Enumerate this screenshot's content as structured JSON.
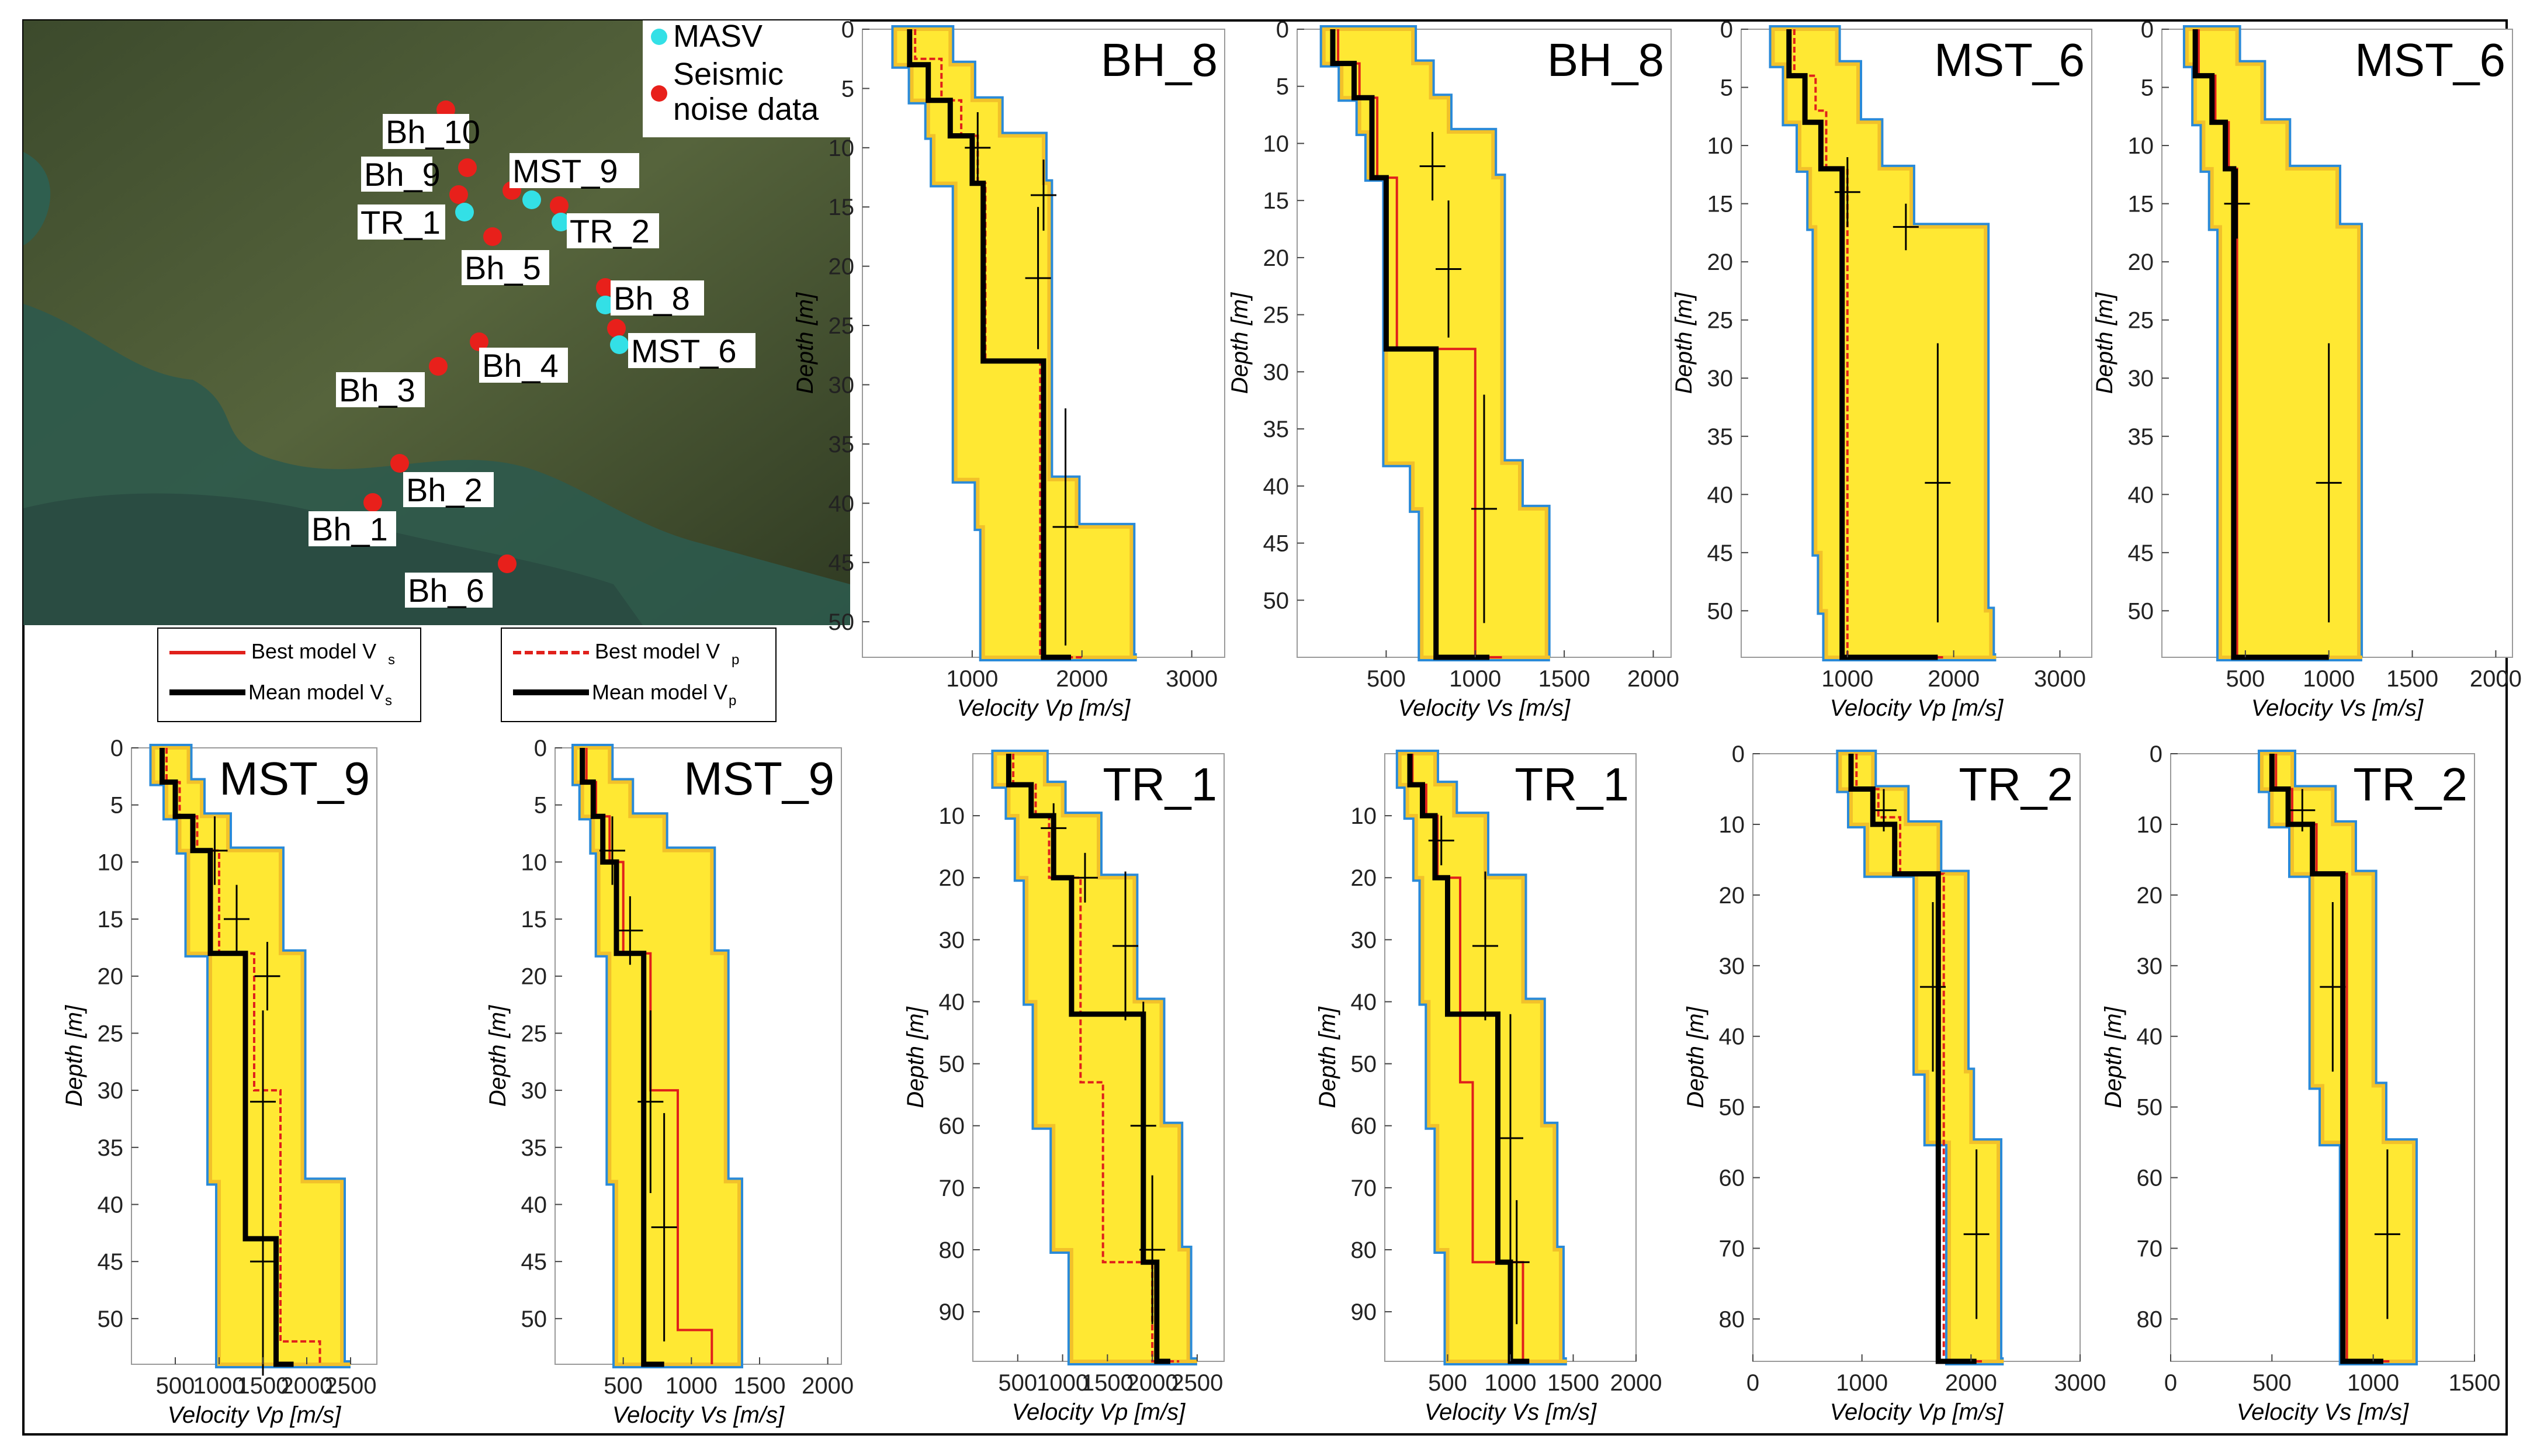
{
  "colors": {
    "best_vs": "#e0201b",
    "best_vp": "#e0201b",
    "mean": "#000000",
    "masv": "#33e0e6",
    "seismic": "#e8201b",
    "fill_yellow": "#ffe833",
    "fill_orange": "#f2c12a"
  },
  "map": {
    "legend": {
      "masv": "MASV",
      "seismic_line1": "Seismic",
      "seismic_line2": "noise data"
    },
    "labels": [
      "Bh_10",
      "Bh_9",
      "MST_9",
      "TR_1",
      "TR_2",
      "Bh_5",
      "Bh_8",
      "MST_6",
      "Bh_4",
      "Bh_3",
      "Bh_2",
      "Bh_1",
      "Bh_6"
    ],
    "model_legend_vs": {
      "best": "Best model V",
      "mean": "Mean model V",
      "sub": "s"
    },
    "model_legend_vp": {
      "best": "Best model V",
      "mean": "Mean model V",
      "sub": "p"
    }
  },
  "common": {
    "ylabel": "Depth [m]",
    "xlabel_vp": "Velocity V_p [m/s]",
    "xlabel_vs": "Velocity V_s [m/s]"
  },
  "chart_data": [
    {
      "type": "line",
      "title": "BH_8",
      "quantity": "Vp",
      "ylabel": "Depth [m]",
      "xlabel": "Velocity Vp [m/s]",
      "xlim": [
        0,
        3300
      ],
      "ylim": [
        0,
        53
      ],
      "xticks": [
        1000,
        2000,
        3000
      ],
      "xtick_labels": [
        "1000",
        "2000",
        "3000"
      ],
      "yticks": [
        0,
        5,
        10,
        15,
        20,
        25,
        30,
        35,
        40,
        45,
        50
      ],
      "mean_profile": {
        "v": [
          430,
          600,
          800,
          1000,
          1100,
          1650,
          1900
        ],
        "z": [
          0,
          3,
          6,
          9,
          13,
          28,
          53
        ]
      },
      "best_profile": {
        "v": [
          480,
          720,
          900,
          1050,
          1120,
          1620,
          2000
        ],
        "z": [
          0,
          2.5,
          6,
          9,
          13,
          28,
          53
        ]
      },
      "envelope": {
        "z": [
          0,
          3,
          6,
          9,
          13,
          38,
          42,
          53
        ],
        "vmin": [
          300,
          450,
          600,
          650,
          850,
          1050,
          1100,
          1150
        ],
        "vmax": [
          800,
          1000,
          1250,
          1650,
          1700,
          1950,
          2450,
          2500
        ]
      },
      "error_bars": [
        {
          "z": 10,
          "v": 1050,
          "dz": 3
        },
        {
          "z": 14,
          "v": 1650,
          "dz": 3
        },
        {
          "z": 21,
          "v": 1600,
          "dz": 6
        },
        {
          "z": 42,
          "v": 1850,
          "dz": 10
        }
      ]
    },
    {
      "type": "line",
      "title": "BH_8",
      "quantity": "Vs",
      "ylabel": "Depth [m]",
      "xlabel": "Velocity Vs [m/s]",
      "xlim": [
        0,
        2100
      ],
      "ylim": [
        0,
        55
      ],
      "xticks": [
        500,
        1000,
        1500,
        2000
      ],
      "xtick_labels": [
        "500",
        "1000",
        "1500",
        "2000"
      ],
      "yticks": [
        0,
        5,
        10,
        15,
        20,
        25,
        30,
        35,
        40,
        45,
        50
      ],
      "mean_profile": {
        "v": [
          200,
          320,
          420,
          500,
          780,
          1080
        ],
        "z": [
          0,
          3,
          6,
          13,
          28,
          55
        ]
      },
      "best_profile": {
        "v": [
          230,
          350,
          450,
          560,
          1000,
          1150
        ],
        "z": [
          0,
          3,
          6,
          13,
          28,
          55
        ]
      },
      "envelope": {
        "z": [
          0,
          3,
          6,
          9,
          13,
          38,
          42,
          55
        ],
        "vmin": [
          150,
          250,
          350,
          400,
          500,
          650,
          700,
          720
        ],
        "vmax": [
          650,
          750,
          850,
          1100,
          1150,
          1250,
          1400,
          1420
        ]
      },
      "error_bars": [
        {
          "z": 12,
          "v": 760,
          "dz": 3
        },
        {
          "z": 21,
          "v": 850,
          "dz": 6
        },
        {
          "z": 42,
          "v": 1050,
          "dz": 10
        }
      ]
    },
    {
      "type": "line",
      "title": "MST_6",
      "quantity": "Vp",
      "ylabel": "Depth [m]",
      "xlabel": "Velocity Vp [m/s]",
      "xlim": [
        0,
        3300
      ],
      "ylim": [
        0,
        54
      ],
      "xticks": [
        1000,
        2000,
        3000
      ],
      "xtick_labels": [
        "1000",
        "2000",
        "3000"
      ],
      "yticks": [
        0,
        5,
        10,
        15,
        20,
        25,
        30,
        35,
        40,
        45,
        50
      ],
      "mean_profile": {
        "v": [
          450,
          600,
          750,
          950,
          1850
        ],
        "z": [
          0,
          4,
          8,
          12,
          54
        ]
      },
      "best_profile": {
        "v": [
          500,
          700,
          800,
          1000,
          1900
        ],
        "z": [
          0,
          4,
          7,
          12,
          54
        ]
      },
      "envelope": {
        "z": [
          0,
          3,
          8,
          12,
          17,
          45,
          50,
          54
        ],
        "vmin": [
          300,
          420,
          550,
          650,
          700,
          750,
          800,
          800
        ],
        "vmax": [
          900,
          1100,
          1300,
          1600,
          2300,
          2300,
          2350,
          2400
        ]
      },
      "error_bars": [
        {
          "z": 14,
          "v": 1000,
          "dz": 3
        },
        {
          "z": 17,
          "v": 1550,
          "dz": 2
        },
        {
          "z": 39,
          "v": 1850,
          "dz": 12
        }
      ]
    },
    {
      "type": "line",
      "title": "MST_6",
      "quantity": "Vs",
      "ylabel": "Depth [m]",
      "xlabel": "Velocity Vs [m/s]",
      "xlim": [
        0,
        2100
      ],
      "ylim": [
        0,
        54
      ],
      "xticks": [
        500,
        1000,
        1500,
        2000
      ],
      "xtick_labels": [
        "500",
        "1000",
        "1500",
        "2000"
      ],
      "yticks": [
        0,
        5,
        10,
        15,
        20,
        25,
        30,
        35,
        40,
        45,
        50
      ],
      "mean_profile": {
        "v": [
          200,
          300,
          380,
          430,
          1000
        ],
        "z": [
          0,
          4,
          8,
          12,
          54
        ]
      },
      "best_profile": {
        "v": [
          220,
          320,
          400,
          450,
          1000
        ],
        "z": [
          0,
          4,
          8,
          12,
          54
        ]
      },
      "envelope": {
        "z": [
          0,
          3,
          8,
          12,
          17,
          54
        ],
        "vmin": [
          150,
          200,
          250,
          300,
          350,
          380
        ],
        "vmax": [
          450,
          600,
          750,
          1050,
          1180,
          1200
        ]
      },
      "error_bars": [
        {
          "z": 15,
          "v": 450,
          "dz": 3
        },
        {
          "z": 39,
          "v": 1000,
          "dz": 12
        }
      ]
    },
    {
      "type": "line",
      "title": "MST_9",
      "quantity": "Vp",
      "ylabel": "Depth [m]",
      "xlabel": "Velocity Vp [m/s]",
      "xlim": [
        0,
        2800
      ],
      "ylim": [
        0,
        54
      ],
      "xticks": [
        500,
        1000,
        1500,
        2000,
        2500
      ],
      "xtick_labels": [
        "500",
        "1000",
        "1500",
        "2000",
        "2500"
      ],
      "yticks": [
        0,
        5,
        10,
        15,
        20,
        25,
        30,
        35,
        40,
        45,
        50
      ],
      "mean_profile": {
        "v": [
          350,
          500,
          700,
          900,
          1300,
          1650,
          1850
        ],
        "z": [
          0,
          3,
          6,
          9,
          18,
          43,
          54
        ]
      },
      "best_profile": {
        "v": [
          400,
          550,
          750,
          1000,
          1400,
          1700,
          2150
        ],
        "z": [
          0,
          3,
          6,
          9,
          18,
          30,
          52
        ]
      },
      "envelope": {
        "z": [
          0,
          3,
          6,
          9,
          18,
          38,
          54
        ],
        "vmin": [
          250,
          400,
          550,
          650,
          900,
          1000,
          1000
        ],
        "vmax": [
          650,
          800,
          1100,
          1700,
          1950,
          2400,
          2500
        ]
      },
      "error_bars": [
        {
          "z": 9,
          "v": 950,
          "dz": 3
        },
        {
          "z": 15,
          "v": 1200,
          "dz": 3
        },
        {
          "z": 20,
          "v": 1550,
          "dz": 3
        },
        {
          "z": 31,
          "v": 1500,
          "dz": 8
        },
        {
          "z": 45,
          "v": 1500,
          "dz": 10
        }
      ]
    },
    {
      "type": "line",
      "title": "MST_9",
      "quantity": "Vs",
      "ylabel": "Depth [m]",
      "xlabel": "Velocity Vs [m/s]",
      "xlim": [
        0,
        2100
      ],
      "ylim": [
        0,
        54
      ],
      "xticks": [
        500,
        1000,
        1500,
        2000
      ],
      "xtick_labels": [
        "500",
        "1000",
        "1500",
        "2000"
      ],
      "yticks": [
        0,
        5,
        10,
        15,
        20,
        25,
        30,
        35,
        40,
        45,
        50
      ],
      "mean_profile": {
        "v": [
          200,
          280,
          350,
          450,
          650,
          800
        ],
        "z": [
          0,
          3,
          6,
          10,
          18,
          54
        ]
      },
      "best_profile": {
        "v": [
          230,
          300,
          400,
          500,
          700,
          900,
          1150
        ],
        "z": [
          0,
          3,
          6,
          10,
          18,
          30,
          51
        ]
      },
      "envelope": {
        "z": [
          0,
          3,
          6,
          9,
          18,
          38,
          54
        ],
        "vmin": [
          150,
          200,
          280,
          320,
          400,
          450,
          480
        ],
        "vmax": [
          400,
          550,
          800,
          1150,
          1250,
          1350,
          1350
        ]
      },
      "error_bars": [
        {
          "z": 9,
          "v": 420,
          "dz": 3
        },
        {
          "z": 16,
          "v": 550,
          "dz": 3
        },
        {
          "z": 31,
          "v": 700,
          "dz": 8
        },
        {
          "z": 42,
          "v": 800,
          "dz": 10
        }
      ]
    },
    {
      "type": "line",
      "title": "TR_1",
      "quantity": "Vp",
      "ylabel": "Depth [m]",
      "xlabel": "Velocity Vp [m/s]",
      "xlim": [
        0,
        2800
      ],
      "ylim": [
        0,
        98
      ],
      "xticks": [
        500,
        1000,
        1500,
        2000,
        2500
      ],
      "xtick_labels": [
        "500",
        "1000",
        "1500",
        "2000",
        "2500"
      ],
      "yticks": [
        10,
        20,
        30,
        40,
        50,
        60,
        70,
        80,
        90
      ],
      "mean_profile": {
        "v": [
          400,
          650,
          900,
          1100,
          1900,
          2050,
          2200
        ],
        "z": [
          0,
          5,
          10,
          20,
          42,
          82,
          98
        ]
      },
      "best_profile": {
        "v": [
          450,
          700,
          850,
          1200,
          1450,
          2000,
          2300
        ],
        "z": [
          0,
          5,
          10,
          20,
          53,
          82,
          98
        ]
      },
      "envelope": {
        "z": [
          0,
          5,
          10,
          20,
          40,
          60,
          80,
          98
        ],
        "vmin": [
          250,
          400,
          500,
          600,
          700,
          900,
          1100,
          1200
        ],
        "vmax": [
          800,
          1000,
          1400,
          1800,
          2100,
          2300,
          2400,
          2500
        ]
      },
      "error_bars": [
        {
          "z": 12,
          "v": 900,
          "dz": 4
        },
        {
          "z": 20,
          "v": 1250,
          "dz": 4
        },
        {
          "z": 31,
          "v": 1700,
          "dz": 12
        },
        {
          "z": 60,
          "v": 1900,
          "dz": 20
        },
        {
          "z": 80,
          "v": 2000,
          "dz": 12
        }
      ]
    },
    {
      "type": "line",
      "title": "TR_1",
      "quantity": "Vs",
      "ylabel": "Depth [m]",
      "xlabel": "Velocity Vs [m/s]",
      "xlim": [
        0,
        2000
      ],
      "ylim": [
        0,
        98
      ],
      "xticks": [
        500,
        1000,
        1500,
        2000
      ],
      "xtick_labels": [
        "500",
        "1000",
        "1500",
        "2000"
      ],
      "yticks": [
        10,
        20,
        30,
        40,
        50,
        60,
        70,
        80,
        90
      ],
      "mean_profile": {
        "v": [
          200,
          300,
          400,
          500,
          900,
          1000,
          1150
        ],
        "z": [
          0,
          5,
          10,
          20,
          42,
          82,
          98
        ]
      },
      "best_profile": {
        "v": [
          220,
          330,
          420,
          600,
          700,
          1100,
          1150
        ],
        "z": [
          0,
          5,
          10,
          20,
          53,
          82,
          98
        ]
      },
      "envelope": {
        "z": [
          0,
          5,
          10,
          20,
          40,
          60,
          80,
          98
        ],
        "vmin": [
          120,
          180,
          250,
          300,
          350,
          420,
          500,
          520
        ],
        "vmax": [
          400,
          550,
          800,
          1100,
          1250,
          1350,
          1400,
          1450
        ]
      },
      "error_bars": [
        {
          "z": 14,
          "v": 450,
          "dz": 4
        },
        {
          "z": 31,
          "v": 800,
          "dz": 12
        },
        {
          "z": 62,
          "v": 1000,
          "dz": 20
        },
        {
          "z": 82,
          "v": 1050,
          "dz": 10
        }
      ]
    },
    {
      "type": "line",
      "title": "TR_2",
      "quantity": "Vp",
      "ylabel": "Depth [m]",
      "xlabel": "Velocity Vp [m/s]",
      "xlim": [
        0,
        3000
      ],
      "ylim": [
        0,
        86
      ],
      "xticks": [
        0,
        1000,
        2000,
        3000
      ],
      "xtick_labels": [
        "0",
        "1000",
        "2000",
        "3000"
      ],
      "yticks": [
        0,
        10,
        20,
        30,
        40,
        50,
        60,
        70,
        80
      ],
      "mean_profile": {
        "v": [
          900,
          1100,
          1300,
          1700,
          2050
        ],
        "z": [
          0,
          5,
          10,
          17,
          86
        ]
      },
      "best_profile": {
        "v": [
          950,
          1150,
          1350,
          1750,
          2100
        ],
        "z": [
          0,
          5,
          9,
          17,
          86
        ]
      },
      "envelope": {
        "z": [
          0,
          5,
          10,
          17,
          45,
          55,
          86
        ],
        "vmin": [
          800,
          900,
          1050,
          1500,
          1600,
          1800,
          1800
        ],
        "vmax": [
          1100,
          1400,
          1700,
          1950,
          2000,
          2250,
          2300
        ]
      },
      "error_bars": [
        {
          "z": 8,
          "v": 1200,
          "dz": 3
        },
        {
          "z": 33,
          "v": 1650,
          "dz": 12
        },
        {
          "z": 68,
          "v": 2050,
          "dz": 12
        }
      ]
    },
    {
      "type": "line",
      "title": "TR_2",
      "quantity": "Vs",
      "ylabel": "Depth [m]",
      "xlabel": "Velocity Vs [m/s]",
      "xlim": [
        0,
        1500
      ],
      "ylim": [
        0,
        86
      ],
      "xticks": [
        0,
        500,
        1000,
        1500
      ],
      "xtick_labels": [
        "0",
        "500",
        "1000",
        "1500"
      ],
      "yticks": [
        0,
        10,
        20,
        30,
        40,
        50,
        60,
        70,
        80
      ],
      "mean_profile": {
        "v": [
          500,
          580,
          700,
          850,
          1050
        ],
        "z": [
          0,
          5,
          10,
          17,
          86
        ]
      },
      "best_profile": {
        "v": [
          520,
          600,
          720,
          870,
          1080
        ],
        "z": [
          0,
          5,
          10,
          17,
          86
        ]
      },
      "envelope": {
        "z": [
          0,
          5,
          10,
          17,
          47,
          55,
          86
        ],
        "vmin": [
          450,
          500,
          600,
          700,
          750,
          850,
          850
        ],
        "vmax": [
          600,
          800,
          900,
          1000,
          1050,
          1200,
          1200
        ]
      },
      "error_bars": [
        {
          "z": 8,
          "v": 650,
          "dz": 3
        },
        {
          "z": 33,
          "v": 800,
          "dz": 12
        },
        {
          "z": 68,
          "v": 1070,
          "dz": 12
        }
      ]
    }
  ]
}
